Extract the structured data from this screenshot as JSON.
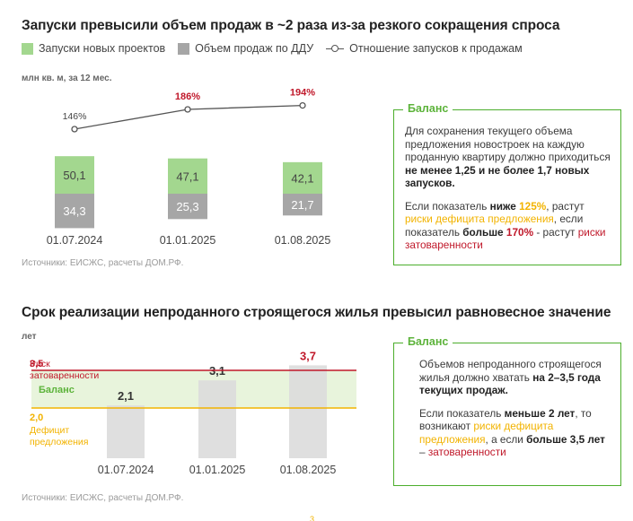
{
  "section1": {
    "title": "Запуски превысили объем продаж в ~2 раза из-за резкого сокращения спроса",
    "legend": {
      "launches": "Запуски новых проектов",
      "sales": "Объем продаж по ДДУ",
      "ratio": "Отношение запусков к продажам"
    },
    "unit": "млн кв. м, за 12 мес.",
    "source": "Источники: ЕИСЖС, расчеты ДОМ.РФ.",
    "balance": {
      "heading": "Баланс",
      "p1_normal": "Для сохранения текущего объема предложения новостроек на каждую проданную квартиру должно приходиться ",
      "p1_bold": "не менее 1,25 и не более 1,7 новых запусков.",
      "p2_a": "Если показатель ",
      "p2_b": "ниже ",
      "p2_c": "125%",
      "p2_d": ", растут ",
      "p2_e": "риски дефицита предложения",
      "p2_f": ", если показатель ",
      "p2_g": "больше ",
      "p2_h": "170%",
      "p2_i": " - растут ",
      "p2_j": "риски затоваренности"
    }
  },
  "section2": {
    "title": "Срок реализации непроданного строящегося жилья превысил равновесное значение",
    "unit": "лет",
    "source": "Источники: ЕИСЖС, расчеты ДОМ.РФ.",
    "balance": {
      "heading": "Баланс",
      "p1_normal": "Объемов непроданного строящегося жилья должно хватать ",
      "p1_bold": "на 2–3,5 года текущих продаж.",
      "p2_a": "Если показатель ",
      "p2_b": "меньше 2 лет",
      "p2_c": ", то возникают ",
      "p2_d": "риски дефицита предложения",
      "p2_e": ", а если ",
      "p2_f": "больше 3,5 лет",
      "p2_g": " – ",
      "p2_h": "затоваренности"
    }
  },
  "page_number": "3",
  "colors": {
    "launches": "#a3d78f",
    "sales": "#a6a6a6",
    "line": "#555555",
    "red": "#c0182a",
    "yellow": "#f2b300",
    "green": "#4cae2c",
    "balance_band": "#e8f4dc",
    "bar2": "#dcdcdc"
  },
  "chart_data": [
    {
      "type": "bar",
      "subtype": "diverging-stacked-with-line",
      "categories": [
        "01.07.2024",
        "01.01.2025",
        "01.08.2025"
      ],
      "series": [
        {
          "name": "Запуски новых проектов",
          "values": [
            50.1,
            47.1,
            42.1
          ],
          "labels": [
            "50,1",
            "47,1",
            "42,1"
          ]
        },
        {
          "name": "Объем продаж по ДДУ",
          "values": [
            34.3,
            25.3,
            21.7
          ],
          "labels": [
            "34,3",
            "25,3",
            "21,7"
          ]
        },
        {
          "name": "Отношение запусков к продажам",
          "type": "line",
          "values": [
            146,
            186,
            194
          ],
          "labels": [
            "146%",
            "186%",
            "194%"
          ],
          "unit": "%"
        }
      ],
      "ylabel": "млн кв. м, за 12 мес."
    },
    {
      "type": "bar",
      "categories": [
        "01.07.2024",
        "01.01.2025",
        "01.08.2025"
      ],
      "values": [
        2.1,
        3.1,
        3.7
      ],
      "labels": [
        "2,1",
        "3,1",
        "3,7"
      ],
      "ylabel": "лет",
      "ylim": [
        0,
        4.5
      ],
      "reference_lines": [
        {
          "value": 3.5,
          "label": "3,5",
          "name": "Риск затоваренности"
        },
        {
          "value": 2.0,
          "label": "2,0",
          "name": "Дефицит предложения"
        }
      ],
      "band": {
        "from": 2.0,
        "to": 3.5,
        "label": "Баланс"
      }
    }
  ]
}
